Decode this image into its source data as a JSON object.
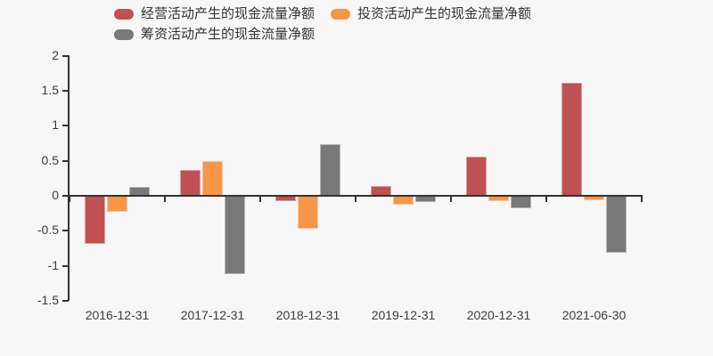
{
  "background": "#f7f7f7",
  "legend": {
    "items": [
      {
        "key": "operating",
        "label": "经营活动产生的现金流量净额",
        "color": "#bf5152"
      },
      {
        "key": "investing",
        "label": "投资活动产生的现金流量净额",
        "color": "#f79648"
      },
      {
        "key": "financing",
        "label": "筹资活动产生的现金流量净额",
        "color": "#787878"
      }
    ]
  },
  "chart_data": {
    "type": "bar",
    "title": "",
    "categories": [
      "2016-12-31",
      "2017-12-31",
      "2018-12-31",
      "2019-12-31",
      "2020-12-31",
      "2021-06-30"
    ],
    "series": [
      {
        "key": "operating",
        "name": "经营活动产生的现金流量净额",
        "color": "#bf5152",
        "values": [
          -0.68,
          0.36,
          -0.07,
          0.13,
          0.55,
          1.6
        ]
      },
      {
        "key": "investing",
        "name": "投资活动产生的现金流量净额",
        "color": "#f79648",
        "values": [
          -0.22,
          0.49,
          -0.46,
          -0.11,
          -0.07,
          -0.05
        ]
      },
      {
        "key": "financing",
        "name": "筹资活动产生的现金流量净额",
        "color": "#787878",
        "values": [
          0.12,
          -1.11,
          0.72,
          -0.08,
          -0.17,
          -0.8
        ]
      }
    ],
    "xlabel": "",
    "ylabel": "",
    "ylim": [
      -1.5,
      2
    ],
    "y_ticks": [
      2,
      1.5,
      1,
      0.5,
      0,
      -0.5,
      -1,
      -1.5
    ],
    "grid": false,
    "legend_position": "top-left",
    "axis_color": "#333333",
    "label_color": "#3c3c3c"
  }
}
